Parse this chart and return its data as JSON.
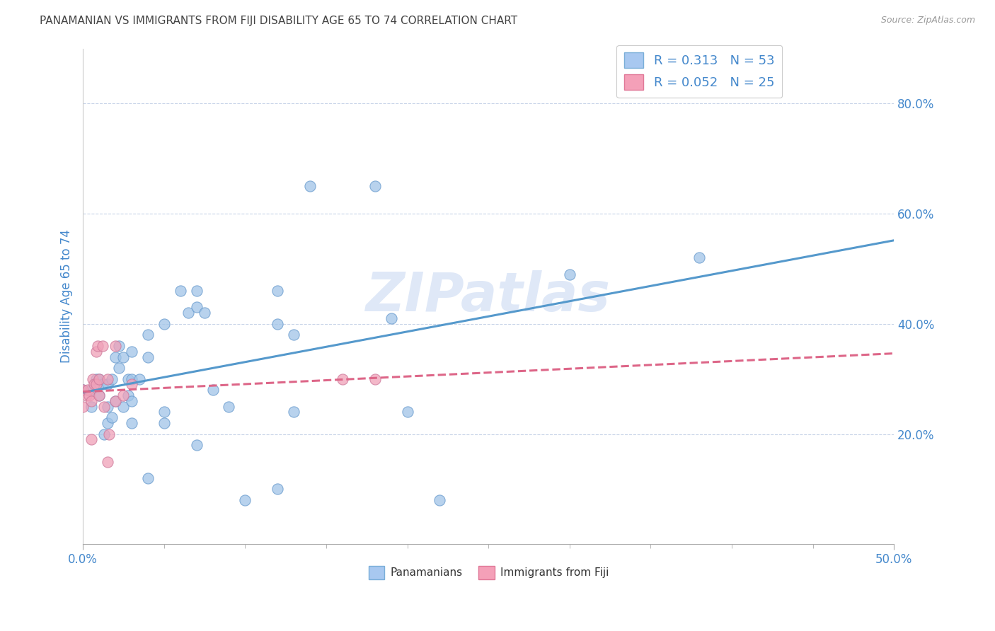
{
  "title": "PANAMANIAN VS IMMIGRANTS FROM FIJI DISABILITY AGE 65 TO 74 CORRELATION CHART",
  "source": "Source: ZipAtlas.com",
  "ylabel": "Disability Age 65 to 74",
  "xlim": [
    0.0,
    0.5
  ],
  "ylim": [
    0.0,
    0.9
  ],
  "xticks": [
    0.0,
    0.5
  ],
  "xtick_labels": [
    "0.0%",
    "50.0%"
  ],
  "yticks": [
    0.2,
    0.4,
    0.6,
    0.8
  ],
  "ytick_labels": [
    "20.0%",
    "40.0%",
    "60.0%",
    "80.0%"
  ],
  "watermark": "ZIPatlas",
  "legend_entries": [
    {
      "color": "#a8c8f0",
      "border": "#7aaed8",
      "R": "0.313",
      "N": "53"
    },
    {
      "color": "#f4a0b8",
      "border": "#e07898",
      "R": "0.052",
      "N": "25"
    }
  ],
  "legend_labels": [
    "Panamanians",
    "Immigrants from Fiji"
  ],
  "blue_scatter_color": "#a0c4e8",
  "blue_scatter_edge": "#6699cc",
  "pink_scatter_color": "#f0a0b8",
  "pink_scatter_edge": "#cc7799",
  "blue_line_color": "#5599cc",
  "pink_line_color": "#dd6688",
  "panamanians_x": [
    0.0,
    0.005,
    0.005,
    0.008,
    0.01,
    0.01,
    0.012,
    0.013,
    0.015,
    0.015,
    0.015,
    0.018,
    0.018,
    0.02,
    0.02,
    0.022,
    0.022,
    0.025,
    0.025,
    0.028,
    0.028,
    0.03,
    0.03,
    0.03,
    0.03,
    0.035,
    0.04,
    0.04,
    0.04,
    0.05,
    0.05,
    0.05,
    0.06,
    0.065,
    0.07,
    0.07,
    0.07,
    0.075,
    0.08,
    0.09,
    0.1,
    0.12,
    0.12,
    0.12,
    0.13,
    0.13,
    0.14,
    0.18,
    0.19,
    0.2,
    0.22,
    0.3,
    0.38
  ],
  "panamanians_y": [
    0.28,
    0.25,
    0.28,
    0.3,
    0.27,
    0.3,
    0.29,
    0.2,
    0.22,
    0.25,
    0.29,
    0.23,
    0.3,
    0.26,
    0.34,
    0.32,
    0.36,
    0.25,
    0.34,
    0.27,
    0.3,
    0.22,
    0.26,
    0.3,
    0.35,
    0.3,
    0.12,
    0.34,
    0.38,
    0.22,
    0.24,
    0.4,
    0.46,
    0.42,
    0.43,
    0.46,
    0.18,
    0.42,
    0.28,
    0.25,
    0.08,
    0.1,
    0.4,
    0.46,
    0.24,
    0.38,
    0.65,
    0.65,
    0.41,
    0.24,
    0.08,
    0.49,
    0.52
  ],
  "fiji_x": [
    0.0,
    0.0,
    0.002,
    0.003,
    0.004,
    0.005,
    0.005,
    0.006,
    0.007,
    0.008,
    0.008,
    0.009,
    0.01,
    0.01,
    0.012,
    0.013,
    0.015,
    0.015,
    0.016,
    0.02,
    0.02,
    0.025,
    0.03,
    0.16,
    0.18
  ],
  "fiji_y": [
    0.25,
    0.28,
    0.27,
    0.28,
    0.27,
    0.19,
    0.26,
    0.3,
    0.29,
    0.29,
    0.35,
    0.36,
    0.27,
    0.3,
    0.36,
    0.25,
    0.15,
    0.3,
    0.2,
    0.26,
    0.36,
    0.27,
    0.29,
    0.3,
    0.3
  ],
  "background_color": "#ffffff",
  "grid_color": "#c8d4e8",
  "title_color": "#444444",
  "tick_color": "#4488cc"
}
